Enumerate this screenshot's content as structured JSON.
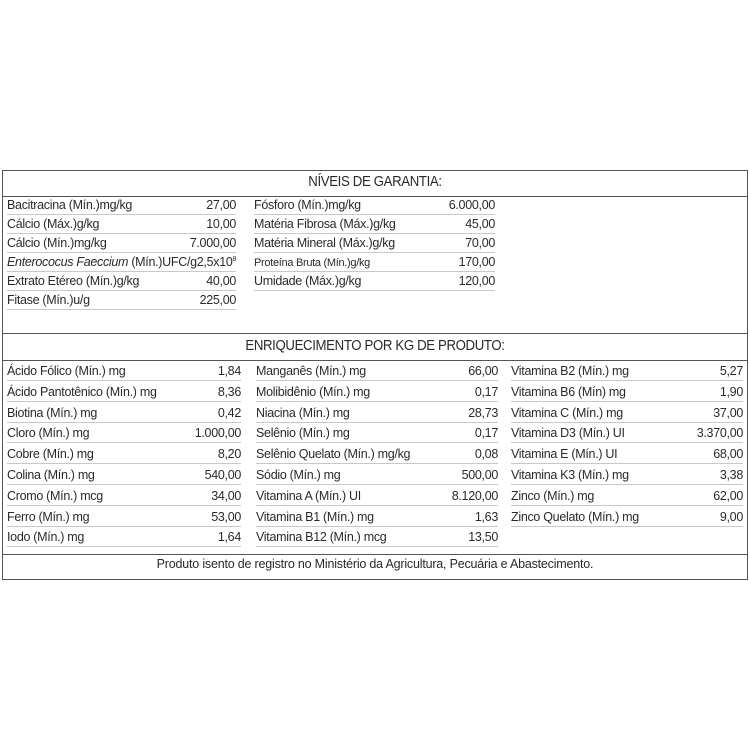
{
  "garantia": {
    "title": "NÍVEIS DE GARANTIA:",
    "col1": [
      {
        "label": "Bacitracina (Mín.)mg/kg",
        "value": "27,00"
      },
      {
        "label": "Cálcio (Máx.)g/kg",
        "value": "10,00"
      },
      {
        "label": "Cálcio (Mín.)mg/kg",
        "value": "7.000,00"
      },
      {
        "label_italic": "Enterococus Faeccium",
        "label": " (Mín.)UFC/g",
        "value": "2,5x10",
        "value_sup": "8"
      },
      {
        "label": "Extrato Etéreo (Mín.)g/kg",
        "value": "40,00"
      },
      {
        "label": "Fitase (Mín.)u/g",
        "value": "225,00"
      }
    ],
    "col2": [
      {
        "label": "Fósforo (Mín.)mg/kg",
        "value": "6.000,00"
      },
      {
        "label": "Matéria Fibrosa (Máx.)g/kg",
        "value": "45,00"
      },
      {
        "label": "Matéria Mineral (Máx.)g/kg",
        "value": "70,00"
      },
      {
        "label": "Proteína Bruta (Mín.)g/kg",
        "value": "170,00"
      },
      {
        "label": "Umidade (Máx.)g/kg",
        "value": "120,00"
      }
    ]
  },
  "enriquecimento": {
    "title": "ENRIQUECIMENTO POR KG DE PRODUTO:",
    "col1": [
      {
        "label": "Ácido Fólico (Mín.) mg",
        "value": "1,84"
      },
      {
        "label": "Ácido Pantotênico (Mín.) mg",
        "value": "8,36"
      },
      {
        "label": "Biotina (Mín.) mg",
        "value": "0,42"
      },
      {
        "label": "Cloro (Mín.) mg",
        "value": "1.000,00"
      },
      {
        "label": "Cobre (Mín.) mg",
        "value": "8,20"
      },
      {
        "label": "Colina (Mín.) mg",
        "value": "540,00"
      },
      {
        "label": "Cromo (Mín.) mcg",
        "value": "34,00"
      },
      {
        "label": "Ferro (Mín.) mg",
        "value": "53,00"
      },
      {
        "label": "Iodo (Mín.) mg",
        "value": "1,64"
      }
    ],
    "col2": [
      {
        "label": "Manganês (Mín.) mg",
        "value": "66,00"
      },
      {
        "label": "Molibidênio (Mín.) mg",
        "value": "0,17"
      },
      {
        "label": "Niacina (Mín.) mg",
        "value": "28,73"
      },
      {
        "label": "Selênio (Mín.) mg",
        "value": "0,17"
      },
      {
        "label": "Selênio Quelato (Mín.) mg/kg",
        "value": "0,08"
      },
      {
        "label": "Sódio (Mín.) mg",
        "value": "500,00"
      },
      {
        "label": "Vitamina A (Mín.) UI",
        "value": "8.120,00"
      },
      {
        "label": "Vitamina B1 (Mín.)  mg",
        "value": "1,63"
      },
      {
        "label": "Vitamina B12 (Mín.) mcg",
        "value": "13,50"
      }
    ],
    "col3": [
      {
        "label": "Vitamina B2 (Mín.) mg",
        "value": "5,27"
      },
      {
        "label": "Vitamina B6 (Mín) mg",
        "value": "1,90"
      },
      {
        "label": "Vitamina C (Mín.) mg",
        "value": "37,00"
      },
      {
        "label": "Vitamina D3 (Mín.) UI",
        "value": "3.370,00"
      },
      {
        "label": "Vitamina E (Mín.) UI",
        "value": "68,00"
      },
      {
        "label": "Vitamina K3 (Mín.) mg",
        "value": "3,38"
      },
      {
        "label": "Zinco (Mín.) mg",
        "value": "62,00"
      },
      {
        "label": "Zinco Quelato (Mín.) mg",
        "value": "9,00"
      }
    ]
  },
  "footer": "Produto isento de registro no Ministério da Agricultura, Pecuária e Abastecimento."
}
